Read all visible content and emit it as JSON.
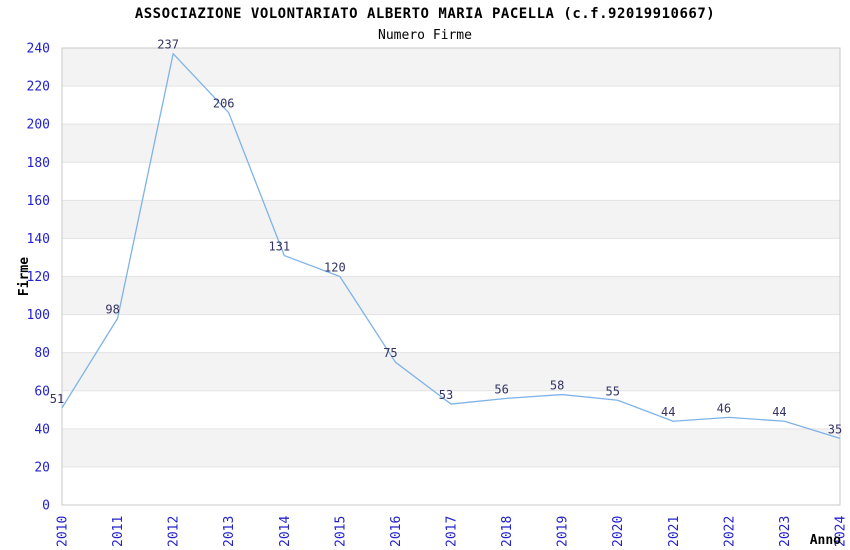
{
  "chart_data": {
    "type": "line",
    "title": "ASSOCIAZIONE VOLONTARIATO ALBERTO MARIA PACELLA (c.f.92019910667)",
    "subtitle": "Numero Firme",
    "xlabel": "Anno",
    "ylabel": "Firme",
    "categories": [
      "2010",
      "2011",
      "2012",
      "2013",
      "2014",
      "2015",
      "2016",
      "2017",
      "2018",
      "2019",
      "2020",
      "2021",
      "2022",
      "2023",
      "2024"
    ],
    "values": [
      51,
      98,
      237,
      206,
      131,
      120,
      75,
      53,
      56,
      58,
      55,
      44,
      46,
      44,
      35
    ],
    "ylim": [
      0,
      240
    ],
    "ytick_step": 20,
    "grid": true,
    "legend": "none",
    "banded_background": true,
    "point_labels_visible": true
  },
  "theme": {
    "line_color": "#7fb3e8",
    "tick_label_color": "#2222cc",
    "point_label_color": "#333366",
    "band_color": "#f3f3f3",
    "grid_color": "#e3e3e3",
    "border_color": "#c9c9c9",
    "text_color": "#000000",
    "background_color": "#ffffff"
  }
}
